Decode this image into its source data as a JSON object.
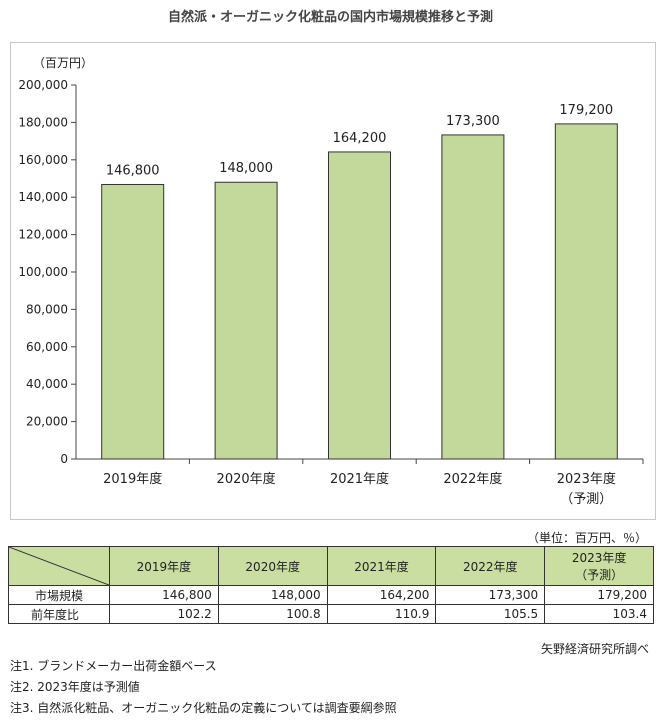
{
  "title": "自然派・オーガニック化粧品の国内市場規模推移と予測",
  "chart_data": {
    "type": "bar",
    "title": "自然派・オーガニック化粧品の国内市場規模推移と予測",
    "ylabel": "（百万円）",
    "xlabel": "",
    "categories": [
      "2019年度",
      "2020年度",
      "2021年度",
      "2022年度",
      "2023年度"
    ],
    "category_sublabels": [
      "",
      "",
      "",
      "",
      "（予測）"
    ],
    "values": [
      146800,
      148000,
      164200,
      173300,
      179200
    ],
    "value_labels": [
      "146,800",
      "148,000",
      "164,200",
      "173,300",
      "179,200"
    ],
    "ylim": [
      0,
      200000
    ],
    "yticks": [
      "0",
      "20,000",
      "40,000",
      "60,000",
      "80,000",
      "100,000",
      "120,000",
      "140,000",
      "160,000",
      "180,000",
      "200,000"
    ],
    "grid": false,
    "bar_color": "#c3d99b",
    "bar_border": "#333333"
  },
  "unit_label": "（単位：百万円、％）",
  "table": {
    "headers": [
      "2019年度",
      "2020年度",
      "2021年度",
      "2022年度",
      "2023年度",
      "（予測）"
    ],
    "rows": [
      {
        "label": "市場規模",
        "values": [
          "146,800",
          "148,000",
          "164,200",
          "173,300",
          "179,200"
        ]
      },
      {
        "label": "前年度比",
        "values": [
          "102.2",
          "100.8",
          "110.9",
          "105.5",
          "103.4"
        ]
      }
    ],
    "header_color": "#c9dea0"
  },
  "source": "矢野経済研究所調べ",
  "notes": [
    "注1. ブランドメーカー出荷金額ベース",
    "注2. 2023年度は予測値",
    "注3. 自然派化粧品、オーガニック化粧品の定義については調査要綱参照"
  ]
}
